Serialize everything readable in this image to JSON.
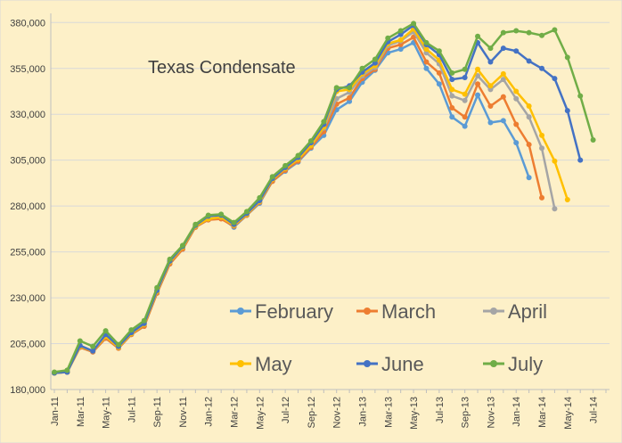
{
  "chart_data": {
    "type": "line",
    "title": "Texas Condensate",
    "xlabel": "",
    "ylabel": "",
    "ylim": [
      180000,
      385000
    ],
    "yticks": [
      "180,000",
      "205,000",
      "230,000",
      "255,000",
      "280,000",
      "305,000",
      "330,000",
      "355,000",
      "380,000"
    ],
    "ytick_values": [
      180000,
      205000,
      230000,
      255000,
      280000,
      305000,
      330000,
      355000,
      380000
    ],
    "x_start": "Jan-11",
    "x_tick_labels": [
      "Jan-11",
      "Mar-11",
      "May-11",
      "Jul-11",
      "Sep-11",
      "Nov-11",
      "Jan-12",
      "Mar-12",
      "May-12",
      "Jul-12",
      "Sep-12",
      "Nov-12",
      "Jan-13",
      "Mar-13",
      "May-13",
      "Jul-13",
      "Sep-13",
      "Nov-13",
      "Jan-14",
      "Mar-14",
      "May-14",
      "Jul-14"
    ],
    "grid": true,
    "legend_position": "inside-lower-right",
    "series": [
      {
        "name": "February",
        "color": "#5b9bd5",
        "values": [
          189000,
          189500,
          203000,
          200500,
          208000,
          202500,
          210000,
          214500,
          232500,
          248500,
          256500,
          268500,
          272500,
          273500,
          268500,
          275000,
          281500,
          293500,
          299000,
          304000,
          311500,
          318500,
          332500,
          337000,
          347500,
          354000,
          363500,
          365500,
          369000,
          355000,
          346500,
          328500,
          323500,
          340500,
          325500,
          326500,
          314500,
          295500
        ]
      },
      {
        "name": "March",
        "color": "#ed7d31",
        "values": [
          189000,
          189500,
          203000,
          200500,
          208000,
          202500,
          210000,
          214500,
          232500,
          248500,
          256500,
          268500,
          272500,
          273000,
          269000,
          275000,
          282000,
          293500,
          299500,
          304500,
          312000,
          320500,
          335500,
          339000,
          349500,
          354500,
          366000,
          368000,
          372000,
          358500,
          352500,
          333500,
          328500,
          346500,
          334500,
          339500,
          324500,
          313500,
          284500
        ]
      },
      {
        "name": "April",
        "color": "#a5a5a5",
        "values": [
          189000,
          189500,
          203500,
          201000,
          209000,
          203000,
          210500,
          215500,
          233500,
          249500,
          257500,
          269000,
          273000,
          274000,
          269500,
          275500,
          282500,
          294500,
          300500,
          305500,
          313000,
          322500,
          338500,
          342000,
          351000,
          355500,
          367500,
          370000,
          375000,
          363500,
          357500,
          340000,
          337500,
          351000,
          343500,
          349000,
          338500,
          328500,
          311500,
          278500
        ]
      },
      {
        "name": "May",
        "color": "#ffc000",
        "values": [
          189000,
          189500,
          203500,
          201000,
          209000,
          203000,
          210500,
          215500,
          233500,
          249500,
          257500,
          269000,
          273000,
          274000,
          269500,
          275500,
          282500,
          294500,
          300500,
          305500,
          313000,
          323000,
          342500,
          343500,
          352000,
          356500,
          368500,
          370500,
          376500,
          365500,
          359500,
          343500,
          341000,
          354500,
          345500,
          352000,
          342500,
          334500,
          318500,
          304500,
          283500
        ]
      },
      {
        "name": "June",
        "color": "#4472c4",
        "values": [
          189000,
          189500,
          204000,
          201000,
          210000,
          203500,
          211000,
          216000,
          234000,
          250000,
          258000,
          269500,
          274500,
          275000,
          270000,
          276000,
          283000,
          295000,
          301000,
          306500,
          314500,
          324500,
          343500,
          345500,
          353000,
          358000,
          369500,
          373500,
          378500,
          368000,
          362500,
          349000,
          350000,
          369000,
          358500,
          366000,
          364500,
          359000,
          355000,
          349500,
          332000,
          305000
        ]
      },
      {
        "name": "July",
        "color": "#70ad47",
        "values": [
          189500,
          190500,
          206500,
          203500,
          212000,
          204500,
          212500,
          217500,
          235500,
          251000,
          258500,
          270000,
          275000,
          275500,
          271000,
          277000,
          284500,
          296000,
          302000,
          307500,
          315500,
          326000,
          344500,
          344500,
          355000,
          360000,
          371500,
          375500,
          379500,
          369000,
          364500,
          352500,
          354500,
          372500,
          366000,
          374500,
          375500,
          374500,
          373000,
          376000,
          361000,
          340000,
          316000
        ]
      }
    ]
  }
}
